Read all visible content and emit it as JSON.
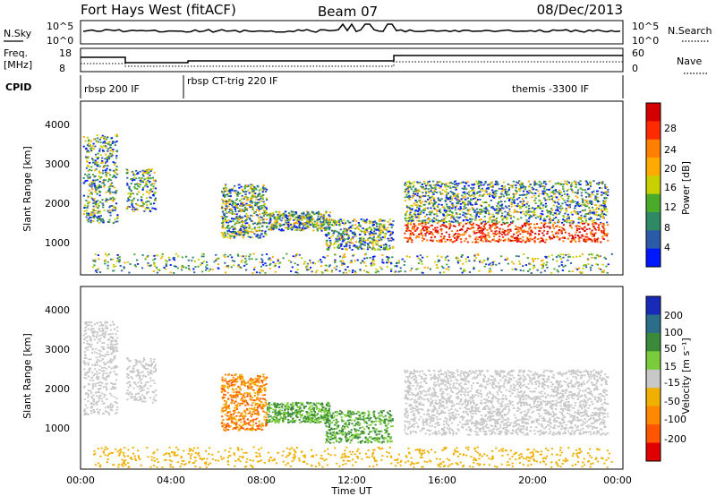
{
  "header": {
    "title": "Fort Hays West (fitACF)",
    "beam": "Beam 07",
    "date": "08/Dec/2013"
  },
  "panels": {
    "noise_left_label": "N.Sky",
    "noise_right_label": "N.Search",
    "noise_ticks_left": [
      "10^5",
      "10^0"
    ],
    "noise_ticks_right": [
      "10^5",
      "10^0"
    ],
    "freq_label_line1": "Freq.",
    "freq_label_line2": "[MHz]",
    "freq_ticks": [
      "18",
      "8"
    ],
    "nave_label": "Nave",
    "nave_ticks": [
      "60",
      "0"
    ],
    "cpid_label": "CPID",
    "cpid_modes": [
      "rbsp 200 IF",
      "rbsp CT-trig 220 IF",
      "themis -3300 IF"
    ]
  },
  "chart_data": [
    {
      "type": "heatmap",
      "panel": "power",
      "ylabel": "Slant Range [km]",
      "y_ticks": [
        "1000",
        "2000",
        "3000",
        "4000"
      ],
      "ylim": [
        180,
        4600
      ],
      "xlim": [
        "00:00",
        "24:00"
      ],
      "colorbar_label": "Power [dB]",
      "colorbar_ticks": [
        "28",
        "24",
        "20",
        "16",
        "12",
        "8",
        "4"
      ],
      "colorbar_colors": [
        "#d40000",
        "#ff2a00",
        "#ff7f00",
        "#ffaa00",
        "#c8d000",
        "#4aaa2a",
        "#2d8a64",
        "#2a5aa8",
        "#0018ff"
      ]
    },
    {
      "type": "heatmap",
      "panel": "velocity",
      "ylabel": "Slant Range [km]",
      "y_ticks": [
        "1000",
        "2000",
        "3000",
        "4000"
      ],
      "ylim": [
        180,
        4600
      ],
      "xlim": [
        "00:00",
        "24:00"
      ],
      "x_ticks": [
        "00:00",
        "04:00",
        "08:00",
        "12:00",
        "16:00",
        "20:00",
        "00:00"
      ],
      "xlabel": "Time UT",
      "colorbar_label": "Velocity [m s⁻¹]",
      "colorbar_ticks": [
        "200",
        "100",
        "50",
        "15",
        "-15",
        "-50",
        "-100",
        "-200"
      ],
      "colorbar_colors": [
        "#1a2ab8",
        "#2a6e8a",
        "#3a8a3a",
        "#7acc3a",
        "#c8c8c8",
        "#f0b000",
        "#ff8800",
        "#ff5500",
        "#e00000"
      ]
    }
  ]
}
